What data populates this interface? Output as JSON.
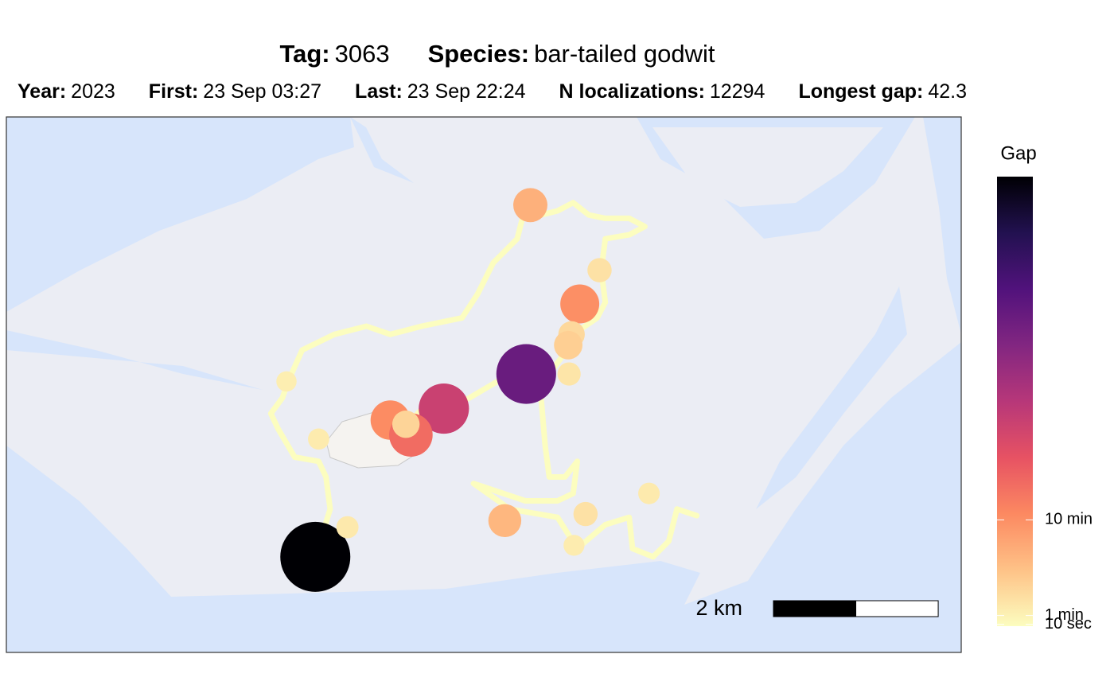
{
  "header": {
    "title": [
      {
        "label": "Tag:",
        "value": "3063"
      },
      {
        "label": "Species:",
        "value": "bar-tailed  godwit"
      }
    ],
    "subtitle": [
      {
        "label": "Year:",
        "value": "2023"
      },
      {
        "label": "First:",
        "value": "23 Sep 03:27"
      },
      {
        "label": "Last:",
        "value": "23 Sep 22:24"
      },
      {
        "label": "N localizations:",
        "value": "12294"
      },
      {
        "label": "Longest gap:",
        "value": "42.3"
      }
    ]
  },
  "map": {
    "xlim": [
      0,
      11.59
    ],
    "ylim": [
      0,
      6.5
    ],
    "track": {
      "color": "#fcfdbf",
      "x": [
        3.75,
        3.84,
        3.93,
        3.88,
        3.79,
        3.5,
        3.3,
        3.21,
        3.35,
        3.42,
        3.59,
        3.98,
        4.37,
        4.66,
        5.04,
        5.53,
        5.72,
        5.91,
        6.2,
        6.3,
        6.49,
        6.69,
        6.88,
        7.07,
        7.27,
        7.56,
        7.75,
        7.56,
        7.27,
        7.22,
        7.27,
        7.17,
        6.88,
        6.73,
        6.59,
        6.3,
        5.96,
        5.62,
        5.33,
        5.04,
        4.85,
        4.75,
        null,
        6.35,
        6.49,
        6.54,
        6.59,
        6.78,
        6.93,
        6.88,
        6.69,
        6.3,
        5.67,
        6.11,
        6.69,
        6.93,
        7.27,
        7.56,
        7.6,
        7.85,
        8.04,
        8.14,
        8.38
      ],
      "y": [
        1.16,
        1.45,
        1.74,
        2.13,
        2.32,
        2.37,
        2.71,
        2.9,
        3.09,
        3.29,
        3.67,
        3.86,
        3.96,
        3.86,
        3.96,
        4.06,
        4.35,
        4.73,
        5.02,
        5.41,
        5.31,
        5.36,
        5.46,
        5.31,
        5.27,
        5.27,
        5.17,
        5.07,
        5.02,
        4.64,
        4.25,
        4.06,
        3.86,
        3.57,
        3.38,
        3.43,
        3.29,
        3.09,
        2.95,
        2.95,
        2.75,
        2.71,
        null,
        3.38,
        3.09,
        2.51,
        2.13,
        2.13,
        2.32,
        1.93,
        1.84,
        1.84,
        2.05,
        1.74,
        1.64,
        1.26,
        1.55,
        1.64,
        1.26,
        1.16,
        1.35,
        1.74,
        1.66
      ]
    },
    "fixes": {
      "x": [
        3.75,
        3.79,
        3.4,
        4.14,
        6.36,
        7.2,
        6.96,
        6.86,
        6.82,
        6.83,
        6.31,
        5.31,
        4.66,
        4.91,
        4.85,
        6.05,
        7.03,
        7.8,
        6.89
      ],
      "y": [
        1.16,
        2.59,
        3.29,
        1.52,
        5.43,
        4.64,
        4.23,
        3.86,
        3.73,
        3.38,
        3.38,
        2.96,
        2.82,
        2.64,
        2.77,
        1.6,
        1.68,
        1.93,
        1.3
      ],
      "gap": [
        2538,
        95,
        80,
        110,
        420,
        150,
        600,
        200,
        250,
        130,
        1750,
        1150,
        620,
        800,
        220,
        380,
        150,
        100,
        90
      ]
    }
  },
  "legend": {
    "title": "Gap",
    "lim": [
      0,
      2538
    ],
    "ticks": [
      {
        "value": 600,
        "label": "10 min"
      },
      {
        "value": 60,
        "label": "1 min"
      },
      {
        "value": 10,
        "label": "10 sec"
      }
    ],
    "palette": [
      "#fcfdbf",
      "#fec287",
      "#fc8961",
      "#e75263",
      "#b73779",
      "#822681",
      "#51127c",
      "#221150",
      "#000004"
    ]
  },
  "scale_bar": {
    "label": "2 km",
    "length": 2
  }
}
